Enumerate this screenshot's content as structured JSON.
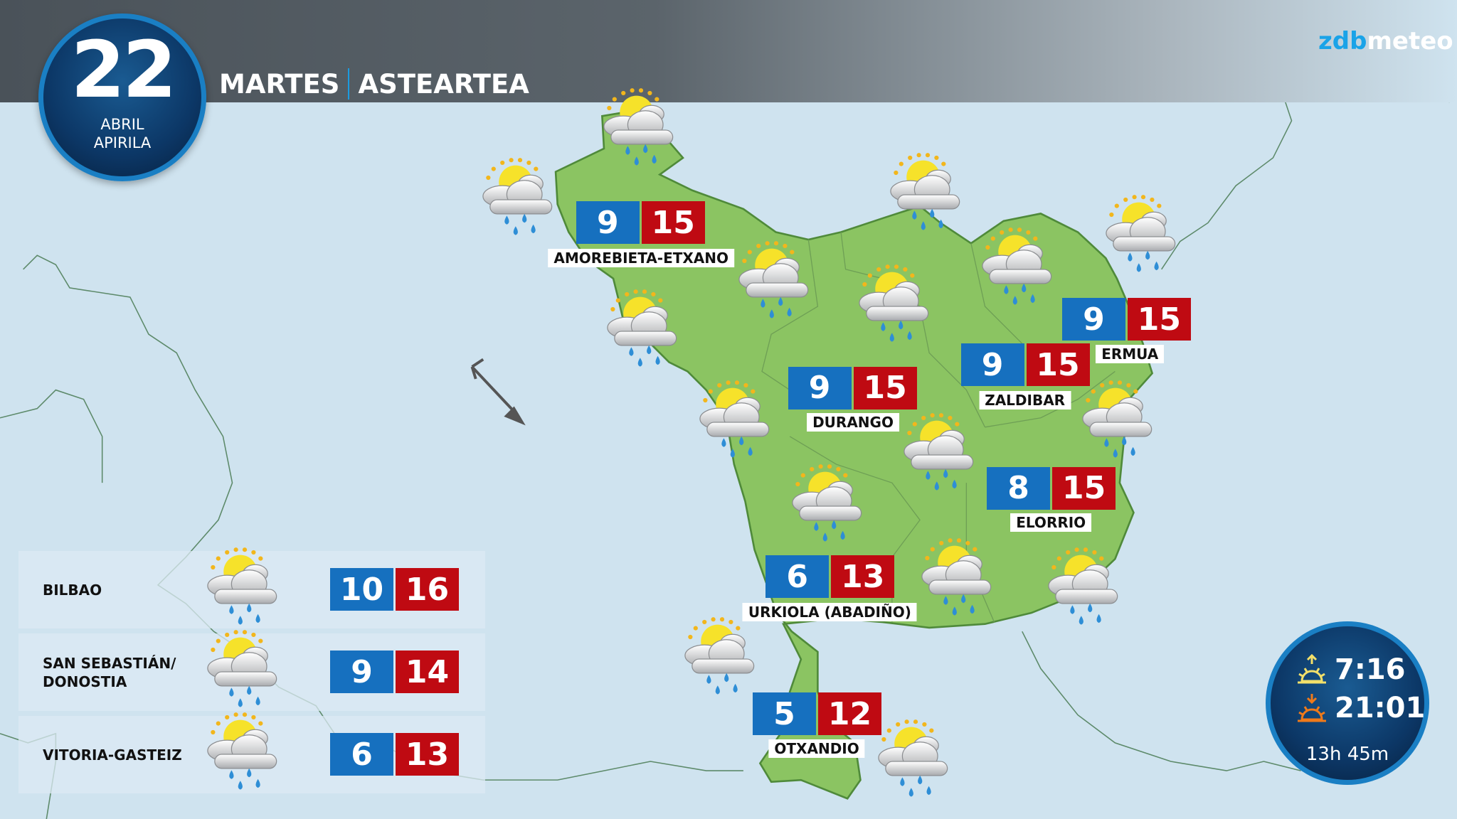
{
  "header": {
    "day": "22",
    "month_es": "ABRIL",
    "month_eu": "APIRILA",
    "weekday_es": "MARTES",
    "weekday_eu": "ASTEARTEA"
  },
  "logo": {
    "part1": "zdb",
    "part2": "meteo"
  },
  "colors": {
    "land": "#8bc462",
    "sea": "#cfe3ef",
    "min": "#1670bf",
    "max": "#bf0a12",
    "accent": "#1a7fc4"
  },
  "weather_icon": "sun-cloud-rain-icon",
  "locations": [
    {
      "name": "AMOREBIETA-ETXANO",
      "min": "9",
      "max": "15"
    },
    {
      "name": "DURANGO",
      "min": "9",
      "max": "15"
    },
    {
      "name": "ZALDIBAR",
      "min": "9",
      "max": "15"
    },
    {
      "name": "ERMUA",
      "min": "9",
      "max": "15"
    },
    {
      "name": "ELORRIO",
      "min": "8",
      "max": "15"
    },
    {
      "name": "URKIOLA (ABADIÑO)",
      "min": "6",
      "max": "13"
    },
    {
      "name": "OTXANDIO",
      "min": "5",
      "max": "12"
    }
  ],
  "cities": [
    {
      "name": "BILBAO",
      "min": "10",
      "max": "16"
    },
    {
      "name": "SAN SEBASTIÁN/ DONOSTIA",
      "min": "9",
      "max": "14"
    },
    {
      "name": "VITORIA-GASTEIZ",
      "min": "6",
      "max": "13"
    }
  ],
  "sun": {
    "sunrise": "7:16",
    "sunset": "21:01",
    "daylight": "13h 45m"
  },
  "wind": {
    "direction": "NW"
  }
}
